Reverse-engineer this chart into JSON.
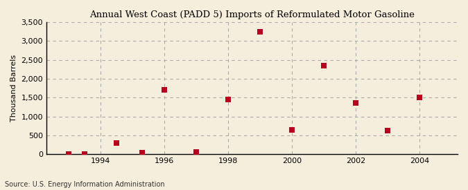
{
  "title": "Annual West Coast (PADD 5) Imports of Reformulated Motor Gasoline",
  "ylabel": "Thousand Barrels",
  "source": "Source: U.S. Energy Information Administration",
  "background_color": "#f5eedc",
  "plot_background_color": "#f5eedc",
  "marker_color": "#b5001f",
  "marker_size": 28,
  "xlim": [
    1992.3,
    2005.2
  ],
  "ylim": [
    0,
    3500
  ],
  "yticks": [
    0,
    500,
    1000,
    1500,
    2000,
    2500,
    3000,
    3500
  ],
  "ytick_labels": [
    "0",
    "500",
    "1,000",
    "1,500",
    "2,000",
    "2,500",
    "3,000",
    "3,500"
  ],
  "xticks": [
    1994,
    1996,
    1998,
    2000,
    2002,
    2004
  ],
  "years": [
    1993,
    1993.5,
    1994.5,
    1995.3,
    1996,
    1997,
    1998,
    1999,
    2000,
    2001,
    2002,
    2003,
    2004
  ],
  "values": [
    3,
    5,
    295,
    45,
    1700,
    55,
    1450,
    3250,
    650,
    2350,
    1350,
    625,
    1500
  ]
}
